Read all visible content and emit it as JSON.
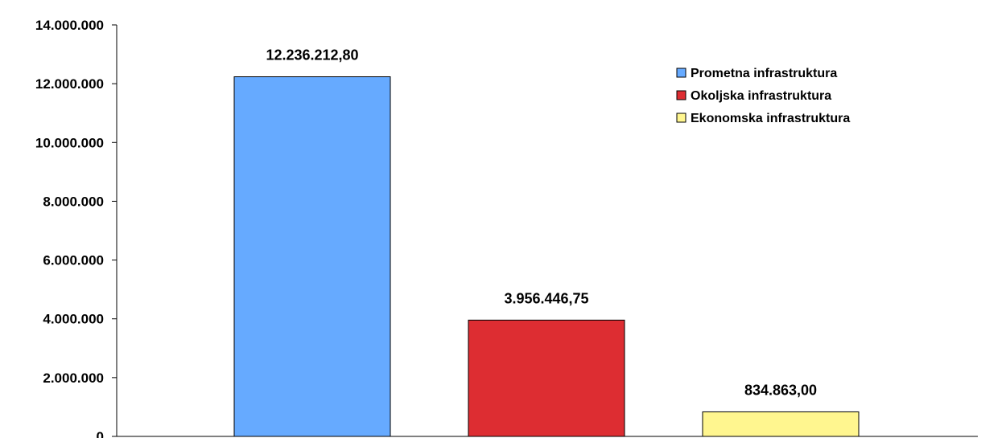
{
  "chart_data": {
    "type": "bar",
    "title": "",
    "xlabel": "",
    "ylabel": "",
    "ylim": [
      0,
      14000000
    ],
    "y_ticks": [
      0,
      2000000,
      4000000,
      6000000,
      8000000,
      10000000,
      12000000,
      14000000
    ],
    "y_tick_labels": [
      "0",
      "2.000.000",
      "4.000.000",
      "6.000.000",
      "8.000.000",
      "10.000.000",
      "12.000.000",
      "14.000.000"
    ],
    "grid": false,
    "legend_position": "top-right",
    "series": [
      {
        "name": "Prometna infrastruktura",
        "value": 12236212.8,
        "label": "12.236.212,80",
        "color": "#66aaff"
      },
      {
        "name": "Okoljska infrastruktura",
        "value": 3956446.75,
        "label": "3.956.446,75",
        "color": "#dd2d32"
      },
      {
        "name": "Ekonomska infrastruktura",
        "value": 834863.0,
        "label": "834.863,00",
        "color": "#fff68f"
      }
    ]
  }
}
